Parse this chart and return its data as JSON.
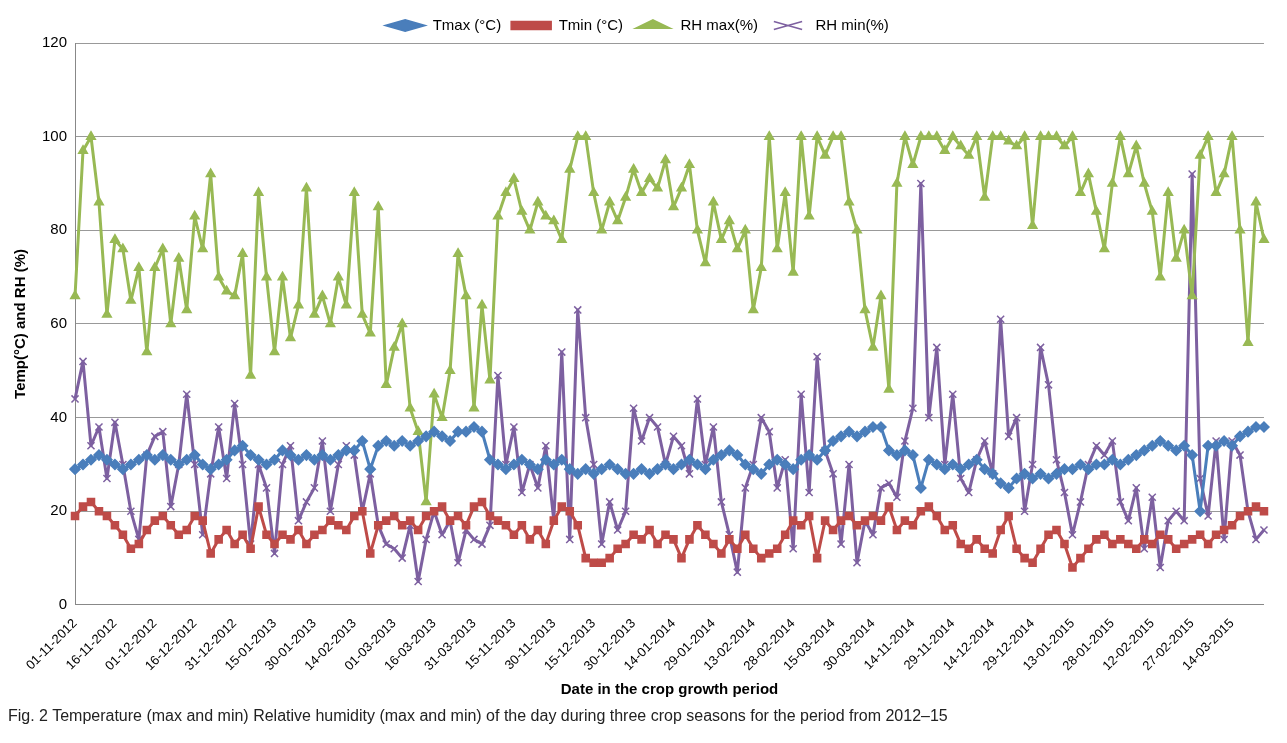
{
  "chart_data": {
    "type": "line",
    "xlabel": "Date in the crop growth period",
    "ylabel": "Temp(°C) and RH (%)",
    "annotations": [
      "Fig. 2  Temperature (max and min) Relative humidity (max and min) of the day during three crop seasons for the period from 2012–15"
    ],
    "ylim": [
      0,
      120
    ],
    "yticks": [
      0,
      20,
      40,
      60,
      80,
      100,
      120
    ],
    "grid": "y",
    "legend": "top",
    "line_style": "solid",
    "categories": [
      "01-11-2012",
      null,
      null,
      null,
      null,
      "16-11-2012",
      null,
      null,
      null,
      null,
      "01-12-2012",
      null,
      null,
      null,
      null,
      "16-12-2012",
      null,
      null,
      null,
      null,
      "31-12-2012",
      null,
      null,
      null,
      null,
      "15-01-2013",
      null,
      null,
      null,
      null,
      "30-01-2013",
      null,
      null,
      null,
      null,
      "14-02-2013",
      null,
      null,
      null,
      null,
      "01-03-2013",
      null,
      null,
      null,
      null,
      "16-03-2013",
      null,
      null,
      null,
      null,
      "31-03-2013",
      null,
      null,
      null,
      null,
      "15-11-2013",
      null,
      null,
      null,
      null,
      "30-11-2013",
      null,
      null,
      null,
      null,
      "15-12-2013",
      null,
      null,
      null,
      null,
      "30-12-2013",
      null,
      null,
      null,
      null,
      "14-01-2014",
      null,
      null,
      null,
      null,
      "29-01-2014",
      null,
      null,
      null,
      null,
      "13-02-2014",
      null,
      null,
      null,
      null,
      "28-02-2014",
      null,
      null,
      null,
      null,
      "15-03-2014",
      null,
      null,
      null,
      null,
      "30-03-2014",
      null,
      null,
      null,
      null,
      "14-11-2014",
      null,
      null,
      null,
      null,
      "29-11-2014",
      null,
      null,
      null,
      null,
      "14-12-2014",
      null,
      null,
      null,
      null,
      "29-12-2014",
      null,
      null,
      null,
      null,
      "13-01-2015",
      null,
      null,
      null,
      null,
      "28-01-2015",
      null,
      null,
      null,
      null,
      "12-02-2015",
      null,
      null,
      null,
      null,
      "27-02-2015",
      null,
      null,
      null,
      null,
      "14-03-2015",
      null,
      null,
      null,
      null
    ],
    "series": [
      {
        "name": "Tmax (°C)",
        "color": "#4a7ebb",
        "marker": "diamond",
        "values": [
          29,
          30,
          31,
          32,
          31,
          30,
          29,
          30,
          31,
          32,
          31,
          32,
          31,
          30,
          31,
          32,
          30,
          29,
          30,
          31,
          33,
          34,
          32,
          31,
          30,
          31,
          33,
          32,
          31,
          32,
          31,
          32,
          31,
          32,
          33,
          33,
          35,
          29,
          34,
          35,
          34,
          35,
          34,
          35,
          36,
          37,
          36,
          35,
          37,
          37,
          38,
          37,
          31,
          30,
          29,
          30,
          31,
          30,
          29,
          31,
          30,
          31,
          29,
          28,
          29,
          28,
          29,
          30,
          29,
          28,
          28,
          29,
          28,
          29,
          30,
          29,
          30,
          31,
          30,
          29,
          31,
          32,
          33,
          32,
          30,
          29,
          28,
          30,
          31,
          30,
          29,
          31,
          32,
          31,
          33,
          35,
          36,
          37,
          36,
          37,
          38,
          38,
          33,
          32,
          33,
          32,
          25,
          31,
          30,
          29,
          30,
          29,
          30,
          31,
          29,
          28,
          26,
          25,
          27,
          28,
          27,
          28,
          27,
          28,
          29,
          29,
          30,
          29,
          30,
          30,
          31,
          30,
          31,
          32,
          33,
          34,
          35,
          34,
          33,
          34,
          32,
          20,
          34,
          34,
          35,
          34,
          36,
          37,
          38,
          38
        ]
      },
      {
        "name": "Tmin (°C)",
        "color": "#be4b48",
        "marker": "square",
        "values": [
          19,
          21,
          22,
          20,
          19,
          17,
          15,
          12,
          13,
          16,
          18,
          19,
          17,
          15,
          16,
          19,
          18,
          11,
          14,
          16,
          13,
          15,
          12,
          21,
          15,
          13,
          15,
          14,
          16,
          13,
          15,
          16,
          18,
          17,
          16,
          19,
          20,
          11,
          17,
          18,
          19,
          17,
          18,
          16,
          19,
          20,
          21,
          18,
          19,
          17,
          21,
          22,
          19,
          18,
          17,
          15,
          17,
          14,
          16,
          13,
          18,
          21,
          20,
          17,
          10,
          9,
          9,
          10,
          12,
          13,
          15,
          14,
          16,
          13,
          15,
          14,
          10,
          14,
          17,
          15,
          13,
          11,
          14,
          12,
          15,
          12,
          10,
          11,
          12,
          15,
          18,
          17,
          19,
          10,
          18,
          16,
          18,
          19,
          17,
          18,
          19,
          18,
          21,
          16,
          18,
          17,
          20,
          21,
          19,
          16,
          17,
          13,
          12,
          14,
          12,
          11,
          16,
          19,
          12,
          10,
          9,
          12,
          15,
          16,
          13,
          8,
          10,
          12,
          14,
          15,
          13,
          14,
          13,
          12,
          14,
          13,
          15,
          14,
          12,
          13,
          14,
          15,
          13,
          15,
          16,
          17,
          19,
          20,
          21,
          20
        ]
      },
      {
        "name": "RH max(%)",
        "color": "#98b954",
        "marker": "triangle",
        "values": [
          66,
          97,
          100,
          86,
          62,
          78,
          76,
          65,
          72,
          54,
          72,
          76,
          60,
          74,
          63,
          83,
          76,
          92,
          70,
          67,
          66,
          75,
          49,
          88,
          70,
          54,
          70,
          57,
          64,
          89,
          62,
          66,
          60,
          70,
          64,
          88,
          62,
          58,
          85,
          47,
          55,
          60,
          42,
          37,
          22,
          45,
          40,
          50,
          75,
          66,
          42,
          64,
          48,
          83,
          88,
          91,
          84,
          80,
          86,
          83,
          82,
          78,
          93,
          100,
          100,
          88,
          80,
          86,
          82,
          87,
          93,
          88,
          91,
          89,
          95,
          85,
          89,
          94,
          80,
          73,
          86,
          78,
          82,
          76,
          80,
          63,
          72,
          100,
          76,
          88,
          71,
          100,
          83,
          100,
          96,
          100,
          100,
          86,
          80,
          63,
          55,
          66,
          46,
          90,
          100,
          94,
          100,
          100,
          100,
          97,
          100,
          98,
          96,
          100,
          87,
          100,
          100,
          99,
          98,
          100,
          81,
          100,
          100,
          100,
          98,
          100,
          88,
          92,
          84,
          76,
          90,
          100,
          92,
          98,
          90,
          84,
          70,
          88,
          74,
          80,
          66,
          96,
          100,
          88,
          92,
          100,
          80,
          56,
          86,
          78
        ]
      },
      {
        "name": "RH min(%)",
        "color": "#7d60a0",
        "marker": "cross",
        "values": [
          44,
          52,
          34,
          38,
          27,
          39,
          30,
          20,
          14,
          32,
          36,
          37,
          21,
          30,
          45,
          30,
          15,
          28,
          38,
          27,
          43,
          30,
          13,
          30,
          25,
          11,
          30,
          34,
          18,
          22,
          25,
          35,
          20,
          30,
          34,
          32,
          20,
          28,
          17,
          13,
          12,
          10,
          17,
          5,
          14,
          20,
          15,
          18,
          9,
          16,
          14,
          13,
          17,
          49,
          30,
          38,
          24,
          30,
          25,
          34,
          18,
          54,
          14,
          63,
          40,
          30,
          13,
          22,
          16,
          20,
          42,
          35,
          40,
          38,
          30,
          36,
          34,
          28,
          44,
          30,
          38,
          22,
          15,
          7,
          25,
          30,
          40,
          37,
          25,
          31,
          12,
          45,
          24,
          53,
          33,
          28,
          13,
          30,
          9,
          18,
          15,
          25,
          26,
          23,
          35,
          42,
          90,
          40,
          55,
          30,
          45,
          27,
          24,
          31,
          35,
          28,
          61,
          36,
          40,
          20,
          30,
          55,
          47,
          31,
          24,
          15,
          22,
          30,
          34,
          32,
          35,
          22,
          18,
          25,
          12,
          23,
          8,
          18,
          20,
          18,
          92,
          27,
          19,
          35,
          14,
          35,
          32,
          20,
          14,
          16
        ]
      }
    ]
  }
}
